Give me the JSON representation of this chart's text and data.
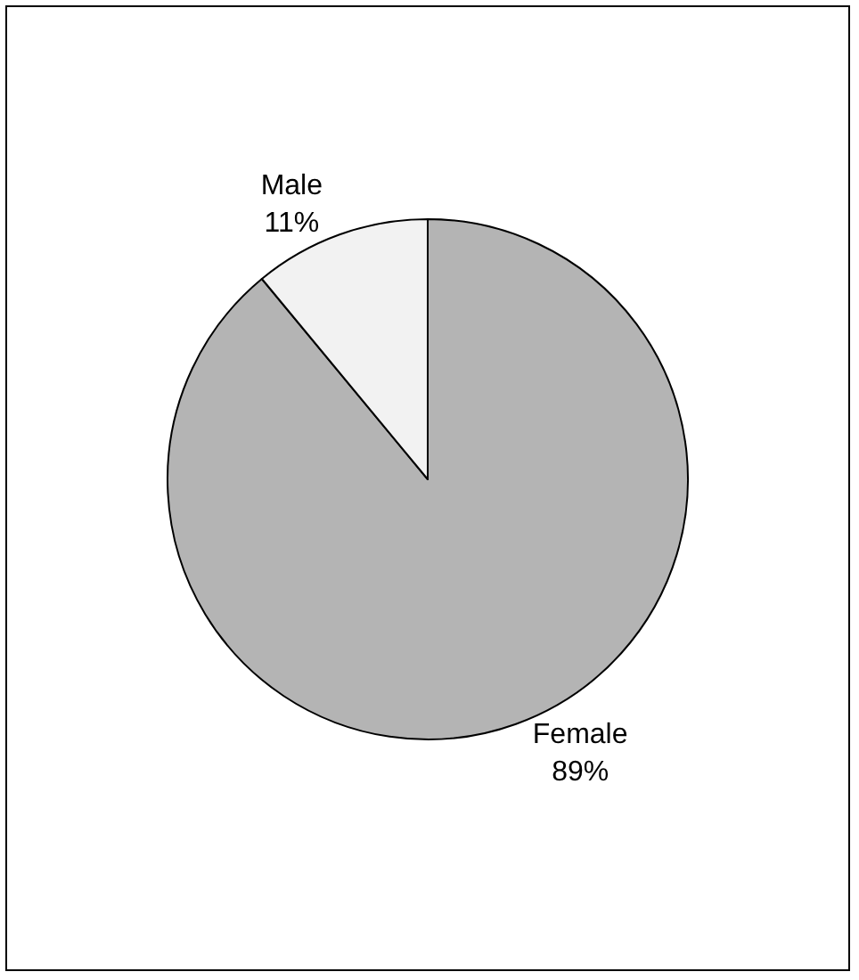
{
  "chart_data": {
    "type": "pie",
    "categories": [
      "Female",
      "Male"
    ],
    "values": [
      89,
      11
    ],
    "value_labels": [
      "89%",
      "11%"
    ],
    "colors": [
      "#b4b4b4",
      "#f2f2f2"
    ],
    "legend": false
  }
}
